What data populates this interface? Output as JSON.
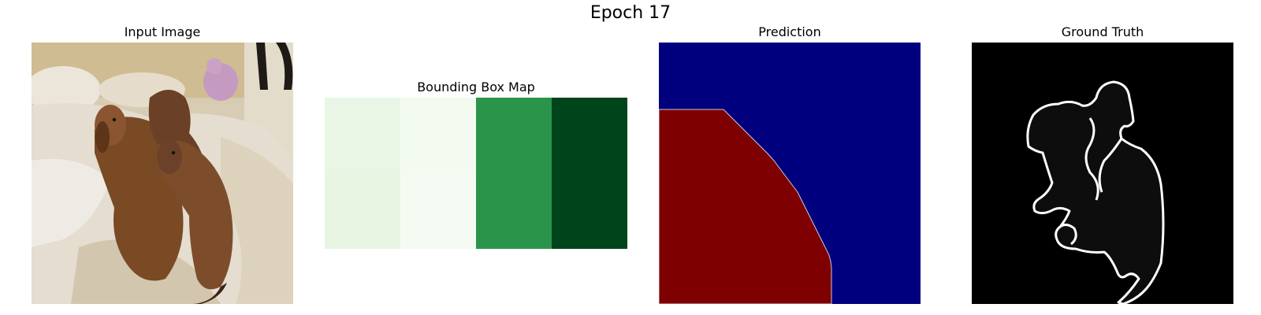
{
  "figure": {
    "title": "Epoch 17"
  },
  "panels": [
    {
      "title": "Input Image"
    },
    {
      "title": "Bounding Box Map"
    },
    {
      "title": "Prediction"
    },
    {
      "title": "Ground Truth"
    }
  ],
  "bbox_map": {
    "colormap": "Greens",
    "rows": 2,
    "cols": 4,
    "cells": [
      [
        "#e9f6e5",
        "#f3faf0",
        "#2b944b",
        "#00441b"
      ],
      [
        "#e8f5e3",
        "#f5fbf2",
        "#2b944b",
        "#00441b"
      ]
    ]
  },
  "prediction": {
    "colors": {
      "background": "#00007f",
      "foreground": "#7f0000"
    }
  },
  "ground_truth": {
    "colors": {
      "background": "#000000",
      "fill": "#0d0d0d",
      "outline": "#ffffff"
    }
  }
}
